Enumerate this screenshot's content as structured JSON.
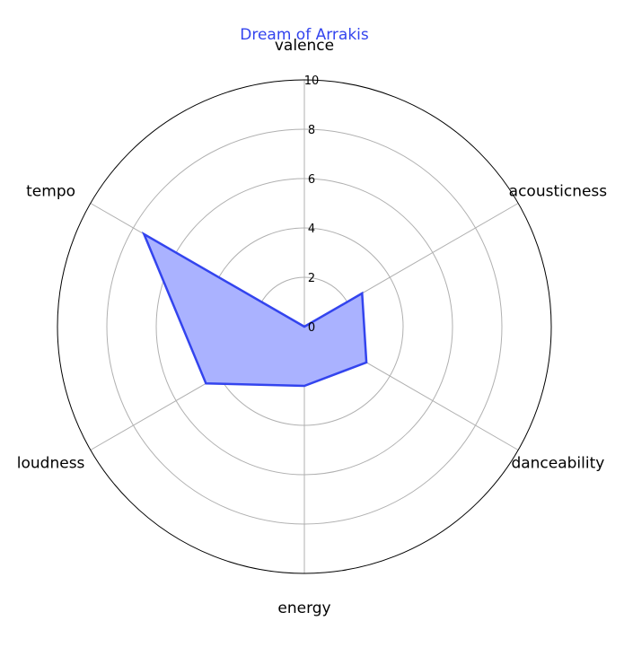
{
  "chart_data": {
    "type": "radar",
    "title": "Dream of Arrakis",
    "axes": [
      "valence",
      "acousticness",
      "danceability",
      "energy",
      "loudness",
      "tempo"
    ],
    "rticks": [
      "0",
      "2",
      "4",
      "6",
      "8",
      "10"
    ],
    "rlim": [
      0,
      10
    ],
    "grid": true,
    "series": [
      {
        "values": [
          0.0,
          2.7,
          2.9,
          2.4,
          4.6,
          7.5
        ]
      }
    ]
  },
  "colors": {
    "series_line": "#3344ee",
    "series_fill": "#aab2ff",
    "title": "#3344ee",
    "grid": "#b0b0b0",
    "outer": "#000000"
  }
}
